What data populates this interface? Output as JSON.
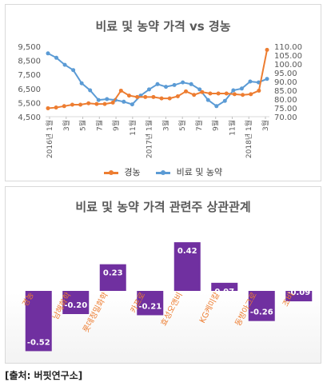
{
  "chart_data": [
    {
      "type": "line",
      "title": "비료 및 농약 가격 vs 경농",
      "x_tick_labels": [
        "2016년 1월",
        "3월",
        "5월",
        "7월",
        "9월",
        "11월",
        "2017년 1월",
        "3월",
        "5월",
        "7월",
        "9월",
        "11월",
        "2018년 1월",
        "3월"
      ],
      "ylim_left": [
        4500,
        9500
      ],
      "yticks_left": [
        "4,500",
        "5,500",
        "6,500",
        "7,500",
        "8,500",
        "9,500"
      ],
      "ylim_right": [
        70,
        110
      ],
      "yticks_right": [
        "70.00",
        "75.00",
        "80.00",
        "85.00",
        "90.00",
        "95.00",
        "100.00",
        "105.00",
        "110.00"
      ],
      "legend_position": "bottom",
      "series": [
        {
          "name": "경농",
          "axis": "left",
          "color": "#ED7D31",
          "values": [
            5100,
            5150,
            5250,
            5350,
            5350,
            5450,
            5400,
            5400,
            5500,
            6350,
            6000,
            5900,
            5900,
            5900,
            5800,
            5800,
            5950,
            6300,
            6050,
            6250,
            6150,
            6150,
            6150,
            6100,
            6050,
            6100,
            6350,
            9250
          ]
        },
        {
          "name": "비료 및 농약",
          "axis": "right",
          "color": "#5B9BD5",
          "values": [
            106,
            103.5,
            99.5,
            96.5,
            89,
            85,
            79.5,
            80,
            79.5,
            78.5,
            77,
            82,
            85.5,
            88.5,
            87,
            88,
            89.5,
            88.5,
            85.5,
            79.5,
            76,
            79,
            85,
            86,
            90,
            89.5,
            91.5
          ]
        }
      ]
    },
    {
      "type": "bar",
      "title": "비료 및 농약 가격 관련주 상관관계",
      "categories": [
        "경농",
        "남해화학",
        "롯데정밀화학",
        "카프로",
        "효성오앤비",
        "KG케미칼",
        "동방아그로",
        "조비"
      ],
      "values": [
        -0.52,
        -0.2,
        0.23,
        -0.21,
        0.42,
        0.07,
        -0.26,
        -0.09
      ],
      "value_labels": [
        "-0.52",
        "-0.20",
        "0.23",
        "-0.21",
        "0.42",
        "0.07",
        "-0.26",
        "-0.09"
      ],
      "color": "#7030A0"
    }
  ],
  "source": "[출처: 버핏연구소]"
}
